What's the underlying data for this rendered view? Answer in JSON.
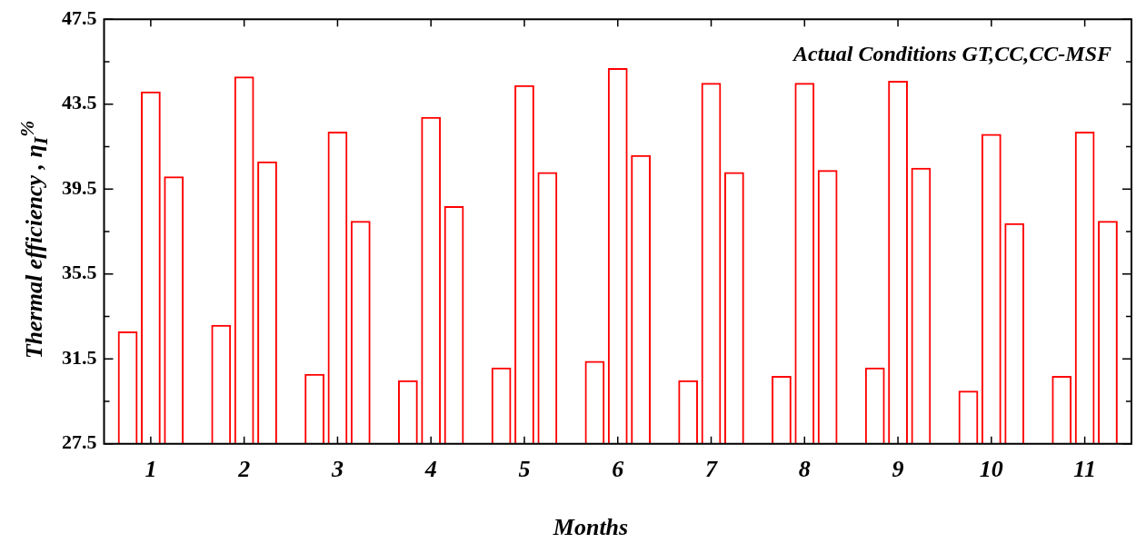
{
  "chart_data": {
    "type": "bar",
    "xlabel": "Months",
    "ylabel": "Thermal efficiency , η$_{I}$$^{%}$",
    "annotations": [
      "Actual Conditions GT,CC,CC-MSF"
    ],
    "categories": [
      "1",
      "2",
      "3",
      "4",
      "5",
      "6",
      "7",
      "8",
      "9",
      "10",
      "11"
    ],
    "series": [
      {
        "color": "#ff0000",
        "values": [
          32.8,
          33.1,
          30.8,
          30.5,
          31.1,
          31.4,
          30.5,
          30.7,
          31.1,
          30.0,
          30.7
        ]
      },
      {
        "color": "#ff0000",
        "values": [
          44.1,
          44.8,
          42.2,
          42.9,
          44.4,
          45.2,
          44.5,
          44.5,
          44.6,
          42.1,
          42.2
        ]
      },
      {
        "color": "#ff0000",
        "values": [
          40.1,
          40.8,
          38.0,
          38.7,
          40.3,
          41.1,
          40.3,
          40.4,
          40.5,
          37.9,
          38.0
        ]
      }
    ],
    "ylim": [
      27.5,
      47.5
    ],
    "yticks": [
      27.5,
      {
        "value": 29.5,
        "label": null
      },
      31.5,
      {
        "value": 33.5,
        "label": null
      },
      35.5,
      {
        "value": 37.5,
        "label": null
      },
      39.5,
      {
        "value": 41.5,
        "label": null
      },
      43.5,
      {
        "value": 45.5,
        "label": null
      },
      47.5
    ],
    "grid": false,
    "legend": false
  }
}
